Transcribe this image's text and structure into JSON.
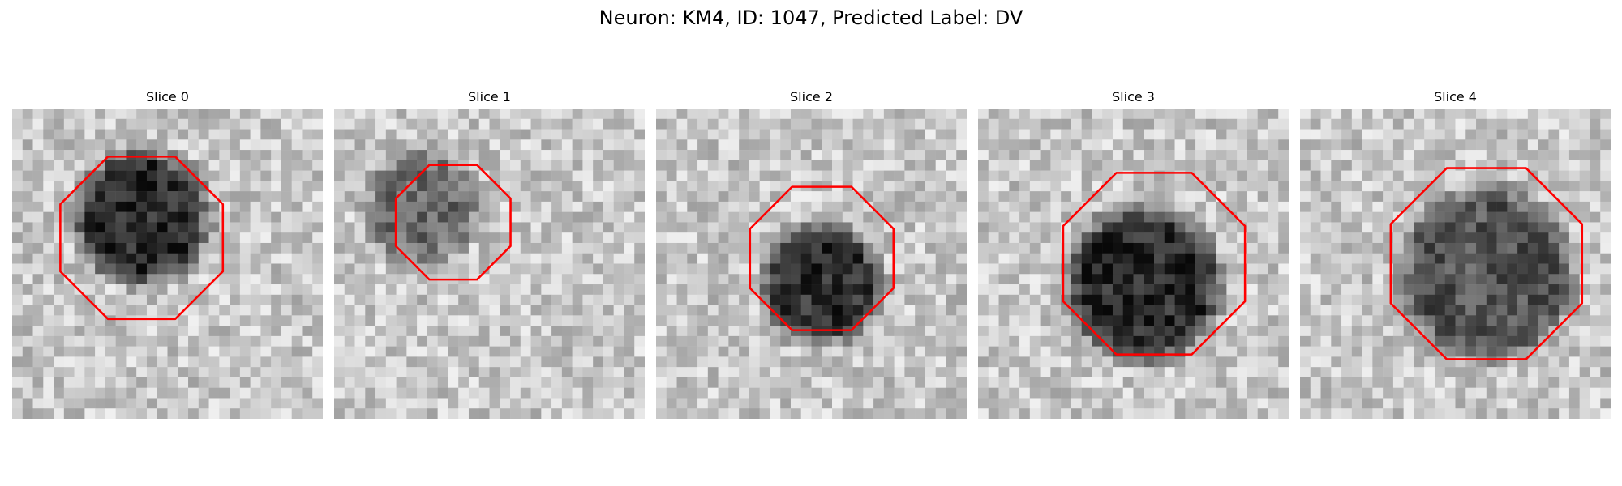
{
  "figure": {
    "title": "Neuron: KM4, ID: 1047, Predicted Label: DV"
  },
  "slices": [
    {
      "title": "Slice 0",
      "blob": {
        "cx": 12.5,
        "cy": 10.5,
        "r": 7.5,
        "depth": 0.62
      },
      "contour": {
        "cx": 12.5,
        "cy": 12.5,
        "r": 8.5
      }
    },
    {
      "title": "Slice 1",
      "blob": {
        "cx": 8.5,
        "cy": 9.5,
        "r": 6.5,
        "depth": 0.36
      },
      "contour": {
        "cx": 11.5,
        "cy": 11.0,
        "r": 6.0
      }
    },
    {
      "title": "Slice 2",
      "blob": {
        "cx": 16.0,
        "cy": 17.0,
        "r": 6.8,
        "depth": 0.6
      },
      "contour": {
        "cx": 16.0,
        "cy": 14.5,
        "r": 7.5
      }
    },
    {
      "title": "Slice 3",
      "blob": {
        "cx": 16.0,
        "cy": 17.0,
        "r": 8.5,
        "depth": 0.62
      },
      "contour": {
        "cx": 17.0,
        "cy": 15.0,
        "r": 9.5
      }
    },
    {
      "title": "Slice 4",
      "blob": {
        "cx": 18.0,
        "cy": 16.0,
        "r": 9.5,
        "depth": 0.45
      },
      "contour": {
        "cx": 18.0,
        "cy": 15.0,
        "r": 10.0
      }
    }
  ],
  "style": {
    "contour_color": "#ff0000"
  }
}
